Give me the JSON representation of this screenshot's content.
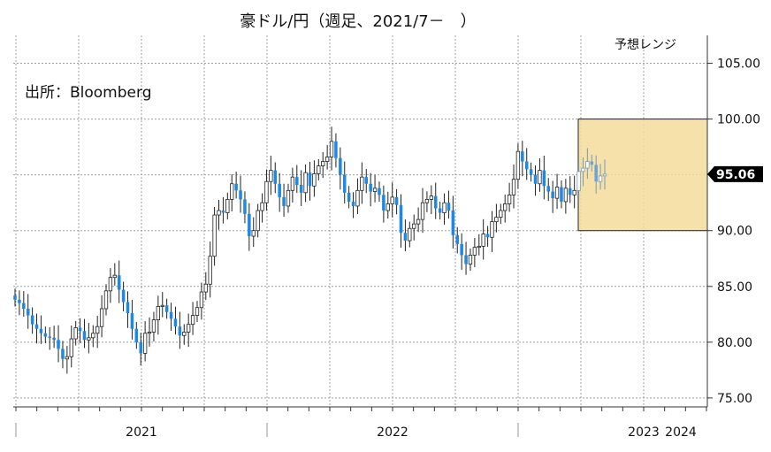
{
  "chart_data": {
    "type": "candlestick",
    "title": "豪ドル/円（週足、2021/7－　）",
    "source": "出所：Bloomberg",
    "y_axis": {
      "ticks": [
        "105.00",
        "100.00",
        "95.00",
        "90.00",
        "85.00",
        "80.00",
        "75.00"
      ],
      "ylim": [
        74.2,
        107.5
      ],
      "position": "right",
      "grid": true
    },
    "x_axis": {
      "labels": [
        "2021",
        "2022",
        "2023",
        "2024"
      ]
    },
    "last_value": {
      "label": "95.06",
      "value": 95.06,
      "color": "#000000"
    },
    "forecast_range": {
      "label": "予想レンジ",
      "low": 90.0,
      "high": 100.0,
      "start": "2023-07",
      "end": "2024-06",
      "color": "#f3dc9a"
    },
    "up_color": "#ffffff",
    "down_color": "#1e88e5",
    "weekly_close": [
      83.8,
      83.5,
      83.0,
      82.4,
      81.6,
      81.2,
      80.8,
      80.5,
      80.4,
      80.2,
      79.4,
      78.5,
      78.7,
      80.3,
      81.3,
      81.0,
      80.2,
      80.4,
      80.8,
      81.4,
      83.0,
      84.6,
      85.8,
      86.0,
      84.7,
      83.6,
      82.6,
      81.2,
      80.0,
      79.0,
      80.8,
      80.9,
      82.0,
      83.2,
      83.3,
      82.7,
      82.1,
      81.4,
      80.6,
      80.9,
      81.6,
      82.4,
      83.1,
      84.5,
      85.2,
      87.7,
      91.4,
      91.8,
      91.6,
      92.8,
      94.2,
      93.6,
      92.8,
      91.5,
      89.5,
      90.0,
      91.8,
      92.5,
      94.4,
      95.4,
      94.2,
      93.0,
      92.2,
      93.6,
      94.8,
      94.1,
      93.4,
      95.2,
      94.0,
      95.1,
      95.8,
      96.2,
      96.6,
      98.0,
      96.5,
      95.0,
      93.4,
      92.6,
      92.2,
      93.6,
      94.8,
      94.2,
      93.5,
      93.8,
      93.2,
      91.8,
      92.4,
      93.0,
      92.3,
      89.8,
      89.1,
      90.2,
      90.6,
      91.0,
      92.5,
      92.8,
      93.1,
      92.0,
      91.6,
      92.5,
      91.8,
      89.6,
      88.8,
      87.8,
      87.0,
      87.8,
      88.5,
      88.6,
      89.7,
      89.4,
      90.8,
      91.2,
      91.8,
      92.4,
      93.2,
      94.6,
      97.1,
      96.2,
      95.5,
      95.0,
      94.2,
      95.4,
      94.0,
      93.5,
      92.9,
      93.9,
      92.6,
      93.8,
      93.2,
      93.6,
      95.3,
      95.6,
      96.2,
      95.9,
      94.4,
      94.9,
      95.06
    ]
  }
}
